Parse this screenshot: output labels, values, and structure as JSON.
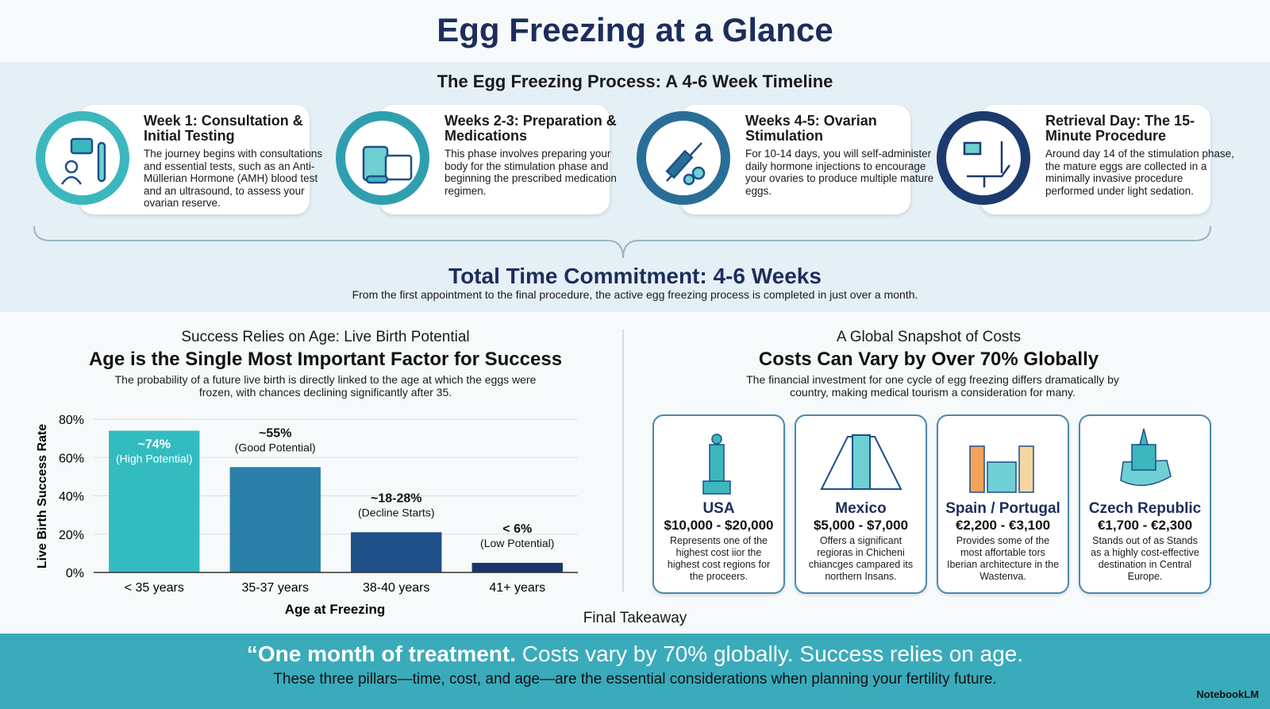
{
  "header": {
    "title": "Egg Freezing at a Glance"
  },
  "timeline": {
    "title": "The Egg Freezing Process: A 4-6 Week Timeline",
    "steps": [
      {
        "title": "Week 1: Consultation & Initial Testing",
        "text": "The journey begins with consultations and essential tests, such as an Anti-Müllerian Hormone (AMH) blood test and an ultrasound, to assess your ovarian reserve."
      },
      {
        "title": "Weeks 2-3: Preparation & Medications",
        "text": "This phase involves preparing your body for the stimulation phase and beginning the prescribed medication regimen."
      },
      {
        "title": "Weeks 4-5: Ovarian Stimulation",
        "text": "For 10-14 days, you will self-administer daily hormone injections to encourage your ovaries to produce multiple mature eggs."
      },
      {
        "title": "Retrieval Day: The 15-Minute Procedure",
        "text": "Around day 14 of the stimulation phase, the mature eggs are collected in a minimally invasive procedure performed under light sedation."
      }
    ],
    "total_title": "Total Time Commitment: 4-6 Weeks",
    "total_text": "From the first appointment to the final procedure, the active egg freezing process is completed in just over a month."
  },
  "success": {
    "kicker": "Success Relies on Age: Live Birth Potential",
    "heading": "Age is the Single Most Important Factor for Success",
    "text": "The probability of a future live birth is directly linked to the age at which the eggs were frozen, with chances declining significantly after 35."
  },
  "chart_data": {
    "type": "bar",
    "categories": [
      "< 35 years",
      "35-37 years",
      "38-40 years",
      "41+ years"
    ],
    "values": [
      74,
      55,
      21,
      5
    ],
    "value_labels": [
      "~74%",
      "~55%",
      "~18-28%",
      "< 6%"
    ],
    "annotations": [
      "(High Potential)",
      "(Good Potential)",
      "(Decline Starts)",
      "(Low Potential)"
    ],
    "colors": [
      "#33bcc0",
      "#2a7fa8",
      "#1f4f88",
      "#1c336b"
    ],
    "ylim": [
      0,
      80
    ],
    "yticks": [
      {
        "value": 0,
        "label": "0%"
      },
      {
        "value": 20,
        "label": "20%"
      },
      {
        "value": 40,
        "label": "40%"
      },
      {
        "value": 60,
        "label": "60%"
      },
      {
        "value": 80,
        "label": "80%"
      }
    ],
    "y_label": "Live Birth Success Rate",
    "x_label": "Age at Freezing",
    "grid": true
  },
  "costs": {
    "kicker": "A Global Snapshot of Costs",
    "heading": "Costs Can Vary by Over 70% Globally",
    "text": "The financial investment for one cycle of egg freezing differs dramatically by country, making medical tourism a consideration for many.",
    "cards": [
      {
        "country": "USA",
        "price": "$10,000 - $20,000",
        "text": "Represents one of the highest cost iior the highest cost regions for the proceers."
      },
      {
        "country": "Mexico",
        "price": "$5,000 - $7,000",
        "text": "Offers a significant regioras in Chicheni chiancges campared its northern Insans."
      },
      {
        "country": "Spain / Portugal",
        "price": "€2,200 - €3,100",
        "text": "Provides some of the most affortable tors Iberian architecture in the Wastenva."
      },
      {
        "country": "Czech Republic",
        "price": "€1,700 - €2,300",
        "text": "Stands out of as Stands as a highly cost-effective destination in Central Europe."
      }
    ]
  },
  "footer": {
    "label": "Final Takeaway",
    "quote_bold": "“One month of treatment.",
    "quote_rest": "Costs vary by 70% globally. Success relies on age.",
    "subquote": "These three pillars—time, cost, and age—are the essential considerations when planning your fertility future.",
    "brand": "NotebookLM"
  }
}
